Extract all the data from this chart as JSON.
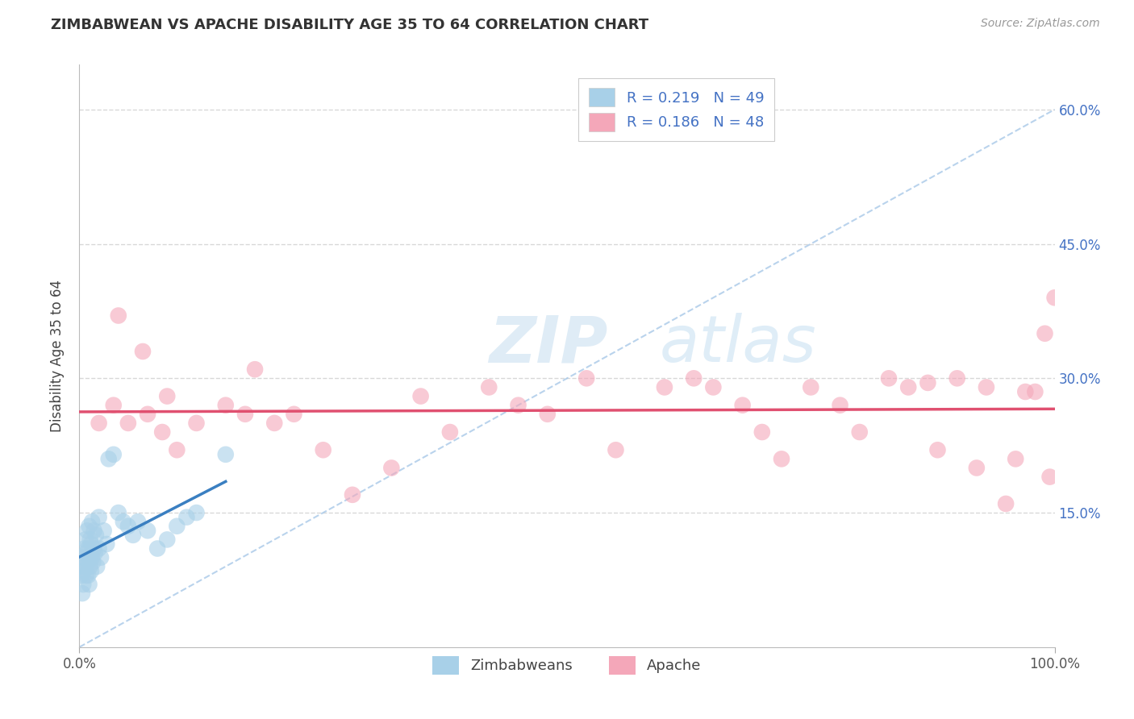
{
  "title": "ZIMBABWEAN VS APACHE DISABILITY AGE 35 TO 64 CORRELATION CHART",
  "source": "Source: ZipAtlas.com",
  "ylabel": "Disability Age 35 to 64",
  "legend_label1": "Zimbabweans",
  "legend_label2": "Apache",
  "r1": 0.219,
  "n1": 49,
  "r2": 0.186,
  "n2": 48,
  "blue_color": "#a8d0e8",
  "pink_color": "#f4a7b9",
  "blue_line_color": "#3a7fc1",
  "pink_line_color": "#e05070",
  "diagonal_color": "#a8c8e8",
  "watermark_zip": "ZIP",
  "watermark_atlas": "atlas",
  "xmin": 0,
  "xmax": 100,
  "ymin": 0,
  "ymax": 65,
  "yticks": [
    15.0,
    30.0,
    45.0,
    60.0
  ],
  "grid_color": "#d8d8d8",
  "blue_dots_x": [
    0.2,
    0.3,
    0.3,
    0.4,
    0.4,
    0.5,
    0.5,
    0.6,
    0.6,
    0.7,
    0.7,
    0.8,
    0.8,
    0.9,
    0.9,
    1.0,
    1.0,
    1.0,
    1.1,
    1.1,
    1.2,
    1.2,
    1.3,
    1.3,
    1.4,
    1.5,
    1.5,
    1.6,
    1.7,
    1.8,
    2.0,
    2.0,
    2.2,
    2.5,
    2.8,
    3.0,
    3.5,
    4.0,
    4.5,
    5.0,
    5.5,
    6.0,
    7.0,
    8.0,
    9.0,
    10.0,
    11.0,
    12.0,
    15.0
  ],
  "blue_dots_y": [
    8.0,
    6.0,
    9.0,
    7.0,
    10.0,
    8.5,
    11.0,
    9.0,
    12.0,
    8.0,
    10.5,
    9.5,
    13.0,
    8.0,
    11.0,
    10.0,
    7.0,
    13.5,
    9.0,
    12.0,
    11.5,
    8.5,
    10.0,
    14.0,
    9.5,
    11.0,
    13.0,
    10.5,
    12.5,
    9.0,
    11.0,
    14.5,
    10.0,
    13.0,
    11.5,
    21.0,
    21.5,
    15.0,
    14.0,
    13.5,
    12.5,
    14.0,
    13.0,
    11.0,
    12.0,
    13.5,
    14.5,
    15.0,
    21.5
  ],
  "pink_dots_x": [
    2.0,
    3.5,
    4.0,
    5.0,
    6.5,
    7.0,
    8.5,
    9.0,
    10.0,
    12.0,
    15.0,
    17.0,
    18.0,
    20.0,
    22.0,
    25.0,
    28.0,
    32.0,
    35.0,
    38.0,
    42.0,
    45.0,
    48.0,
    52.0,
    55.0,
    60.0,
    63.0,
    65.0,
    68.0,
    70.0,
    72.0,
    75.0,
    78.0,
    80.0,
    83.0,
    85.0,
    87.0,
    88.0,
    90.0,
    92.0,
    93.0,
    95.0,
    96.0,
    97.0,
    98.0,
    99.0,
    99.5,
    100.0
  ],
  "pink_dots_y": [
    25.0,
    27.0,
    37.0,
    25.0,
    33.0,
    26.0,
    24.0,
    28.0,
    22.0,
    25.0,
    27.0,
    26.0,
    31.0,
    25.0,
    26.0,
    22.0,
    17.0,
    20.0,
    28.0,
    24.0,
    29.0,
    27.0,
    26.0,
    30.0,
    22.0,
    29.0,
    30.0,
    29.0,
    27.0,
    24.0,
    21.0,
    29.0,
    27.0,
    24.0,
    30.0,
    29.0,
    29.5,
    22.0,
    30.0,
    20.0,
    29.0,
    16.0,
    21.0,
    28.5,
    28.5,
    35.0,
    19.0,
    39.0
  ]
}
